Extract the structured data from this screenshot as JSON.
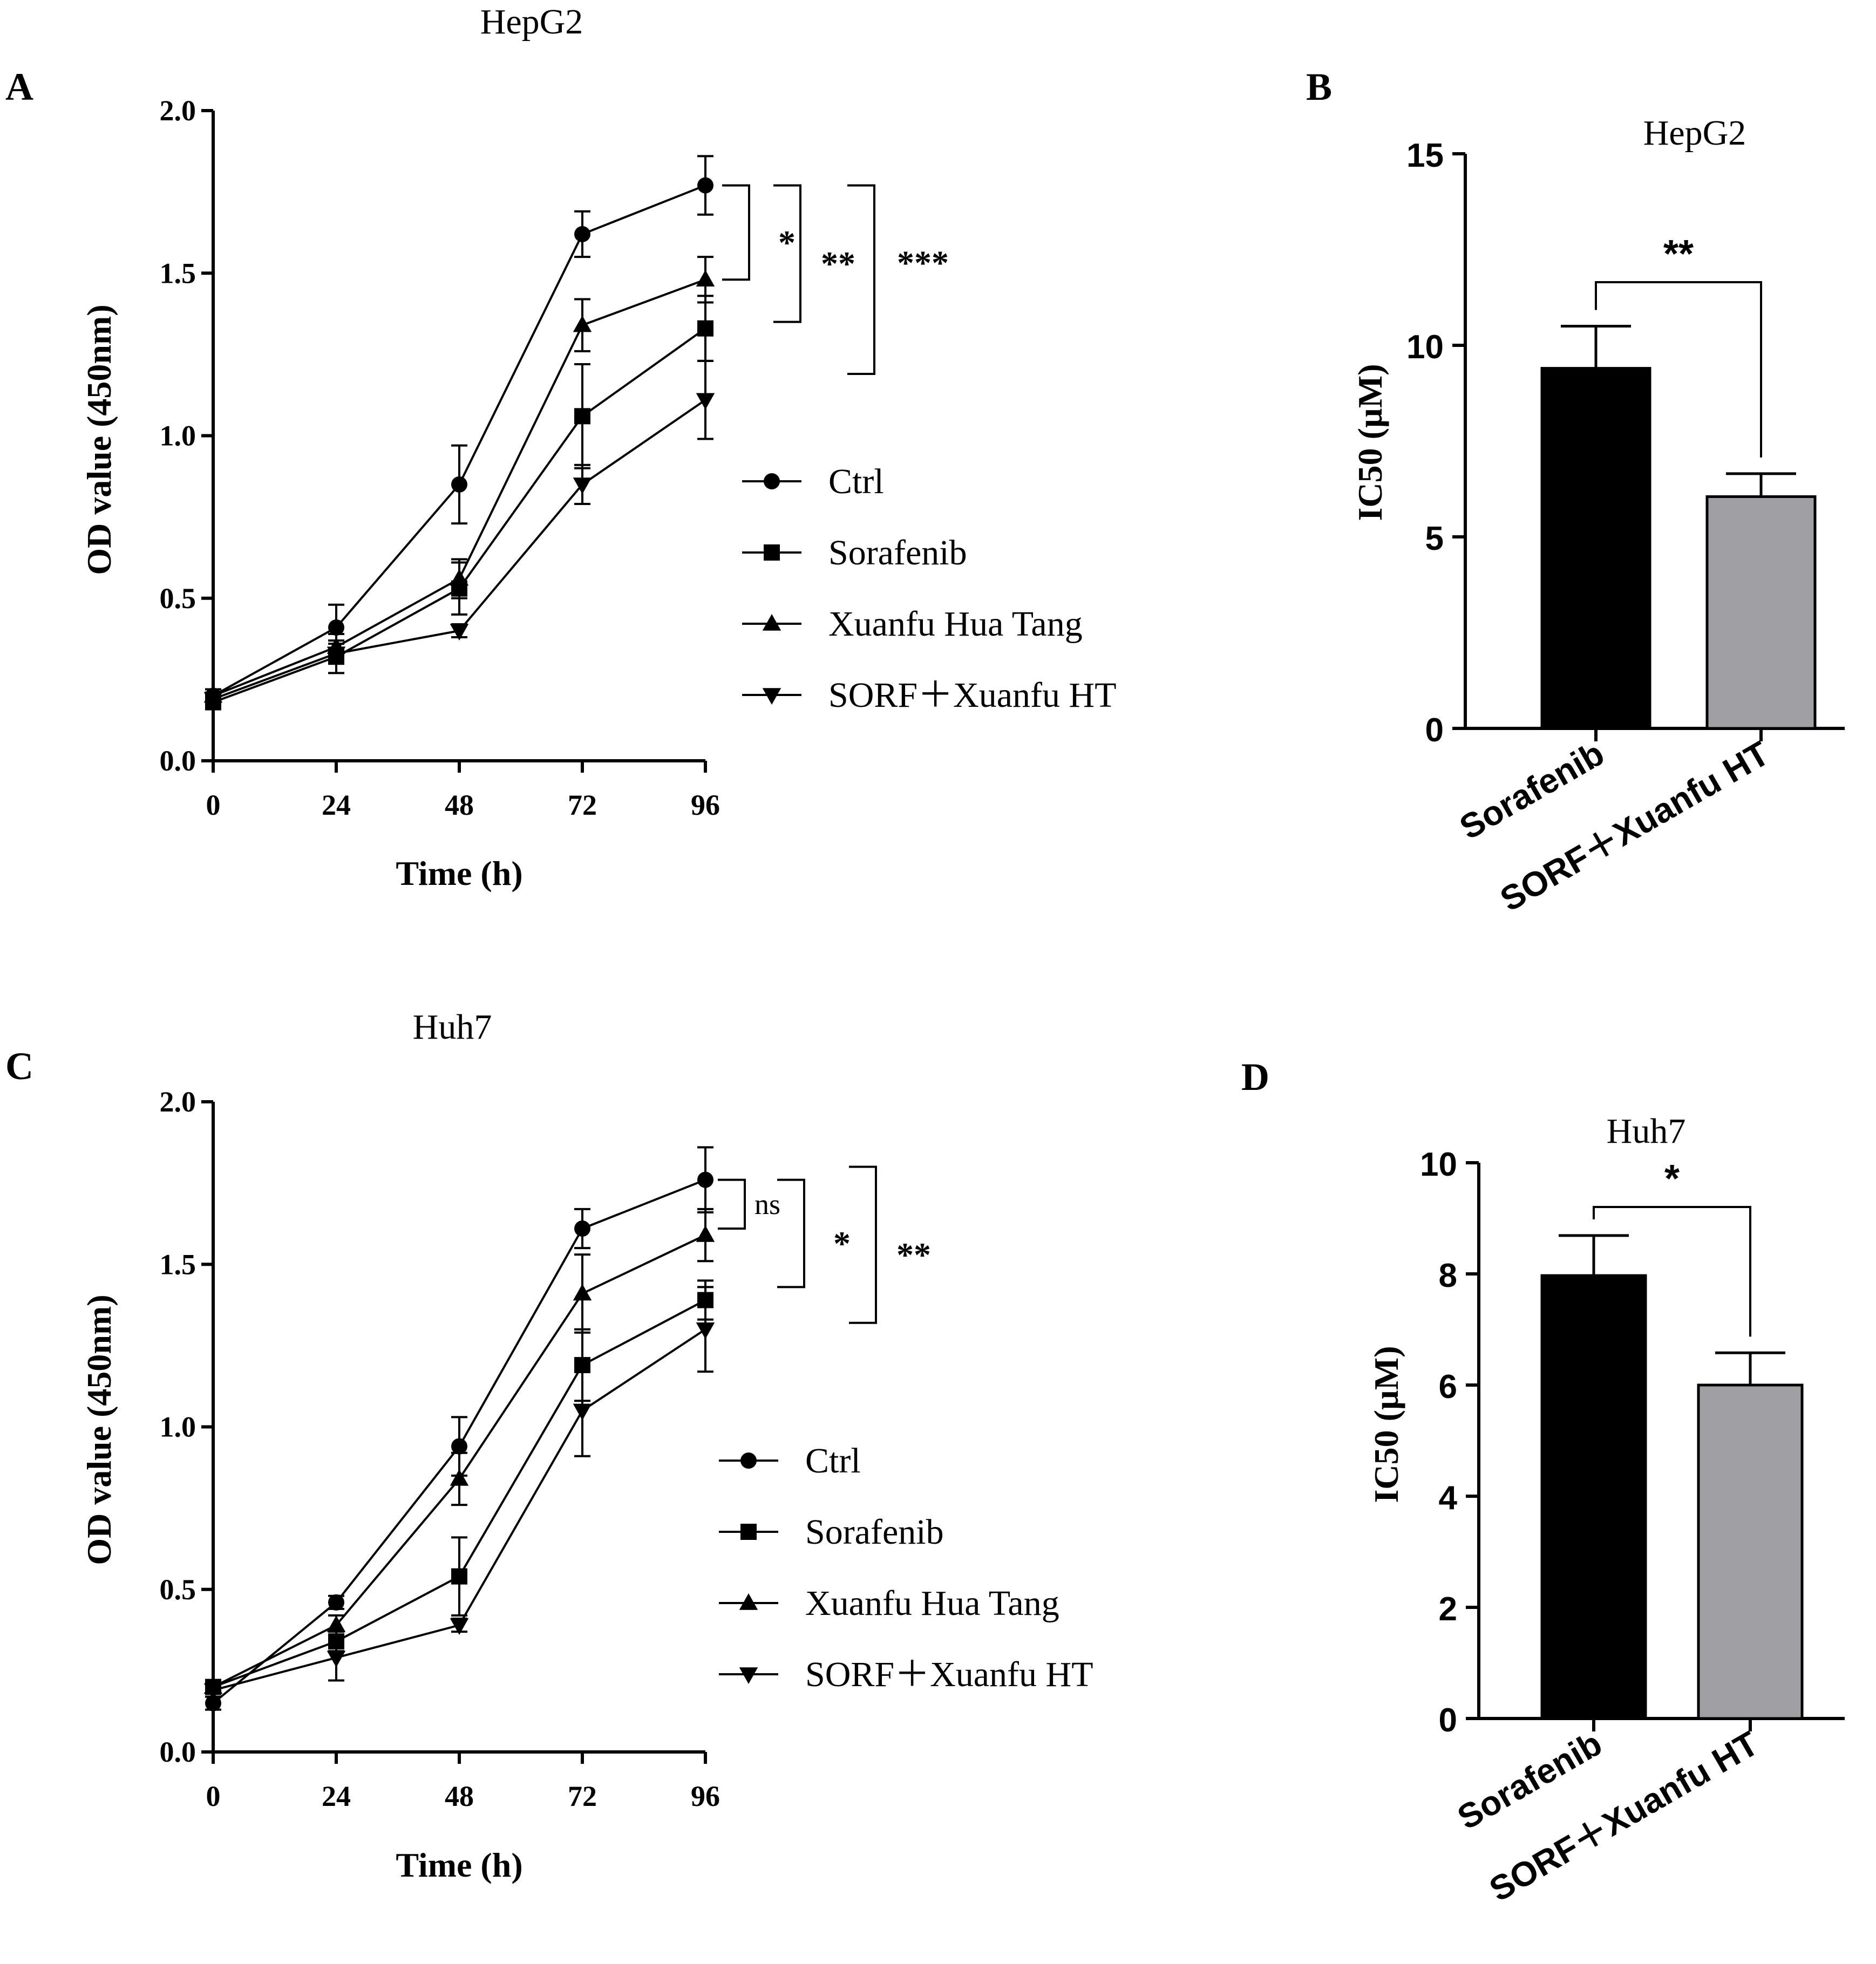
{
  "chart_data": [
    {
      "panel": "A",
      "type": "line",
      "title": "HepG2",
      "xlabel": "Time (h)",
      "ylabel": "OD value (450nm)",
      "x": [
        0,
        24,
        48,
        72,
        96
      ],
      "xticks": [
        "0",
        "24",
        "48",
        "72",
        "96"
      ],
      "yticks": [
        "0.0",
        "0.5",
        "1.0",
        "1.5",
        "2.0"
      ],
      "ylim": [
        0,
        2
      ],
      "series": [
        {
          "name": "Ctrl",
          "marker": "circle",
          "values": [
            0.2,
            0.41,
            0.85,
            1.62,
            1.77
          ],
          "err": [
            0.02,
            0.07,
            0.12,
            0.07,
            0.09
          ]
        },
        {
          "name": "Sorafenib",
          "marker": "square",
          "values": [
            0.18,
            0.32,
            0.53,
            1.06,
            1.33
          ],
          "err": [
            0.02,
            0.05,
            0.08,
            0.16,
            0.1
          ]
        },
        {
          "name": "Xuanfu Hua Tang",
          "marker": "triangle-up",
          "values": [
            0.2,
            0.35,
            0.56,
            1.34,
            1.48
          ],
          "err": [
            0.02,
            0.04,
            0.06,
            0.08,
            0.07
          ]
        },
        {
          "name": "SORF＋Xuanfu HT",
          "marker": "triangle-down",
          "values": [
            0.19,
            0.33,
            0.4,
            0.85,
            1.11
          ],
          "err": [
            0.02,
            0.03,
            0.02,
            0.06,
            0.12
          ]
        }
      ],
      "significance": [
        {
          "text": "*",
          "y_top": 1.77,
          "y_bottom": 1.48
        },
        {
          "text": "**",
          "y_top": 1.77,
          "y_bottom": 1.35
        },
        {
          "text": "***",
          "y_top": 1.77,
          "y_bottom": 1.19
        }
      ],
      "legend": "right"
    },
    {
      "panel": "B",
      "type": "bar",
      "title": "HepG2",
      "ylabel": "IC50 (µM)",
      "categories": [
        "Sorafenib",
        "SORF＋Xuanfu HT"
      ],
      "values": [
        9.4,
        6.05
      ],
      "err": [
        1.1,
        0.6
      ],
      "colors": [
        "#000000",
        "#a0a0a4"
      ],
      "yticks": [
        "0",
        "5",
        "10",
        "15"
      ],
      "ylim": [
        0,
        15
      ],
      "significance": "**"
    },
    {
      "panel": "C",
      "type": "line",
      "title": "Huh7",
      "xlabel": "Time (h)",
      "ylabel": "OD value (450nm)",
      "x": [
        0,
        24,
        48,
        72,
        96
      ],
      "xticks": [
        "0",
        "24",
        "48",
        "72",
        "96"
      ],
      "yticks": [
        "0.0",
        "0.5",
        "1.0",
        "1.5",
        "2.0"
      ],
      "ylim": [
        0,
        2
      ],
      "series": [
        {
          "name": "Ctrl",
          "marker": "circle",
          "values": [
            0.15,
            0.46,
            0.94,
            1.61,
            1.76
          ],
          "err": [
            0.02,
            0.02,
            0.09,
            0.06,
            0.1
          ]
        },
        {
          "name": "Sorafenib",
          "marker": "square",
          "values": [
            0.2,
            0.34,
            0.54,
            1.19,
            1.39
          ],
          "err": [
            0.02,
            0.03,
            0.12,
            0.11,
            0.06
          ]
        },
        {
          "name": "Xuanfu Hua Tang",
          "marker": "triangle-up",
          "values": [
            0.2,
            0.39,
            0.84,
            1.41,
            1.59
          ],
          "err": [
            0.02,
            0.03,
            0.08,
            0.12,
            0.08
          ]
        },
        {
          "name": "SORF＋Xuanfu HT",
          "marker": "triangle-down",
          "values": [
            0.19,
            0.29,
            0.39,
            1.05,
            1.3
          ],
          "err": [
            0.02,
            0.07,
            0.02,
            0.14,
            0.13
          ]
        }
      ],
      "significance": [
        {
          "text": "ns",
          "y_top": 1.76,
          "y_bottom": 1.61
        },
        {
          "text": "*",
          "y_top": 1.76,
          "y_bottom": 1.43
        },
        {
          "text": "**",
          "y_top": 1.8,
          "y_bottom": 1.32
        }
      ],
      "legend": "right"
    },
    {
      "panel": "D",
      "type": "bar",
      "title": "Huh7",
      "ylabel": "IC50 (µM)",
      "categories": [
        "Sorafenib",
        "SORF＋Xuanfu HT"
      ],
      "values": [
        7.97,
        6.0
      ],
      "err": [
        0.72,
        0.58
      ],
      "colors": [
        "#000000",
        "#a0a0a4"
      ],
      "yticks": [
        "0",
        "2",
        "4",
        "6",
        "8",
        "10"
      ],
      "ylim": [
        0,
        10
      ],
      "significance": "*"
    }
  ]
}
